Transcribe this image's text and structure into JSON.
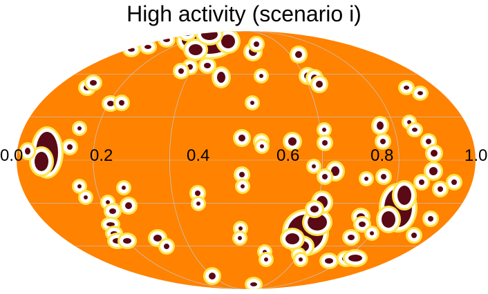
{
  "figure": {
    "title": "High activity (scenario i)",
    "projection": "mollweide",
    "colorbar_ticks": [
      "0.0",
      "0.2",
      "0.4",
      "0.6",
      "0.8",
      "1.0"
    ],
    "colors": {
      "background": "#ff8200",
      "spot_core": "#5a0a14",
      "spot_halo": "#ffffff",
      "spot_rim": "#ffe44a",
      "graticule": "#c8c8c8"
    }
  }
}
